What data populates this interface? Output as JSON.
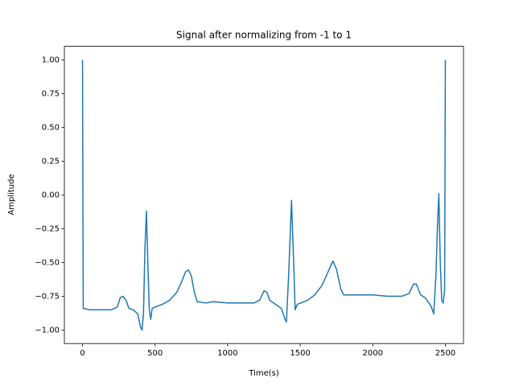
{
  "chart_data": {
    "type": "line",
    "title": "Signal after normalizing from -1 to 1",
    "x_label": "Time(s)",
    "y_label": "Amplitude",
    "series": [
      {
        "color": "#1f77b4",
        "x": [
          0,
          5,
          50,
          100,
          150,
          200,
          240,
          260,
          280,
          300,
          320,
          350,
          380,
          400,
          410,
          420,
          430,
          440,
          450,
          460,
          470,
          480,
          500,
          550,
          600,
          650,
          680,
          710,
          730,
          750,
          770,
          790,
          850,
          900,
          1000,
          1100,
          1180,
          1220,
          1250,
          1270,
          1290,
          1330,
          1370,
          1395,
          1405,
          1420,
          1440,
          1455,
          1465,
          1480,
          1550,
          1600,
          1650,
          1700,
          1725,
          1750,
          1780,
          1800,
          1900,
          2000,
          2100,
          2200,
          2250,
          2280,
          2300,
          2330,
          2360,
          2400,
          2420,
          2435,
          2445,
          2455,
          2465,
          2475,
          2485,
          2495,
          2500
        ],
        "values": [
          1.0,
          -0.84,
          -0.85,
          -0.85,
          -0.85,
          -0.85,
          -0.83,
          -0.76,
          -0.75,
          -0.78,
          -0.84,
          -0.85,
          -0.88,
          -0.98,
          -1.0,
          -0.88,
          -0.4,
          -0.12,
          -0.5,
          -0.85,
          -0.92,
          -0.84,
          -0.83,
          -0.81,
          -0.78,
          -0.72,
          -0.65,
          -0.57,
          -0.555,
          -0.6,
          -0.72,
          -0.79,
          -0.8,
          -0.79,
          -0.8,
          -0.8,
          -0.8,
          -0.78,
          -0.71,
          -0.72,
          -0.78,
          -0.81,
          -0.84,
          -0.92,
          -0.94,
          -0.6,
          -0.04,
          -0.5,
          -0.85,
          -0.81,
          -0.78,
          -0.74,
          -0.67,
          -0.55,
          -0.49,
          -0.55,
          -0.7,
          -0.74,
          -0.74,
          -0.74,
          -0.75,
          -0.75,
          -0.73,
          -0.66,
          -0.66,
          -0.74,
          -0.76,
          -0.82,
          -0.88,
          -0.6,
          -0.25,
          0.01,
          -0.5,
          -0.78,
          -0.8,
          -0.7,
          1.0
        ]
      }
    ],
    "xlim": [
      -125,
      2625
    ],
    "ylim": [
      -1.1,
      1.1
    ],
    "xticks": [
      0,
      500,
      1000,
      1500,
      2000,
      2500
    ],
    "yticks": [
      {
        "value": 1,
        "label": "1.00"
      },
      {
        "value": 0.75,
        "label": "0.75"
      },
      {
        "value": 0.5,
        "label": "0.50"
      },
      {
        "value": 0.25,
        "label": "0.25"
      },
      {
        "value": 0,
        "label": "0.00"
      },
      {
        "value": -0.25,
        "label": "−0.25"
      },
      {
        "value": -0.5,
        "label": "−0.50"
      },
      {
        "value": -0.75,
        "label": "−0.75"
      },
      {
        "value": -1,
        "label": "−1.00"
      }
    ]
  }
}
